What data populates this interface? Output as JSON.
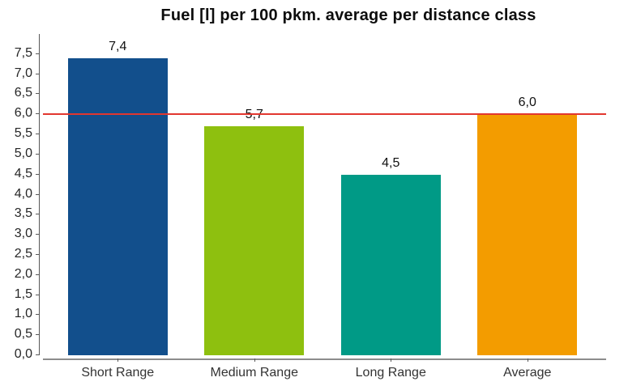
{
  "chart_data": {
    "type": "bar",
    "title": "Fuel [l] per 100 pkm. average per distance class",
    "categories": [
      "Short Range",
      "Medium Range",
      "Long Range",
      "Average"
    ],
    "values": [
      7.4,
      5.7,
      4.5,
      6.0
    ],
    "value_labels": [
      "7,4",
      "5,7",
      "4,5",
      "6,0"
    ],
    "bar_colors": [
      "#124F8C",
      "#8EC00F",
      "#009A86",
      "#F39C00"
    ],
    "xlabel": "",
    "ylabel": "",
    "ylim": [
      0,
      8
    ],
    "ytick_values": [
      0,
      0.5,
      1,
      1.5,
      2,
      2.5,
      3,
      3.5,
      4,
      4.5,
      5,
      5.5,
      6,
      6.5,
      7,
      7.5
    ],
    "ytick_labels": [
      "0,0",
      "0,5",
      "1,0",
      "1,5",
      "2,0",
      "2,5",
      "3,0",
      "3,5",
      "4,0",
      "4,5",
      "5,0",
      "5,5",
      "6,0",
      "6,5",
      "7,0",
      "7,5"
    ],
    "ref_line": {
      "value": 6.0,
      "color": "#E2372F",
      "label": ""
    },
    "grid": false,
    "legend": false
  },
  "colors": {
    "background": "#FFFFFF",
    "y_axis_line": "#595959",
    "x_axis_line": "#8C8C8C",
    "tick_mark": "#595959",
    "title_text": "#0D0D0D",
    "tick_label_text": "#262626"
  }
}
